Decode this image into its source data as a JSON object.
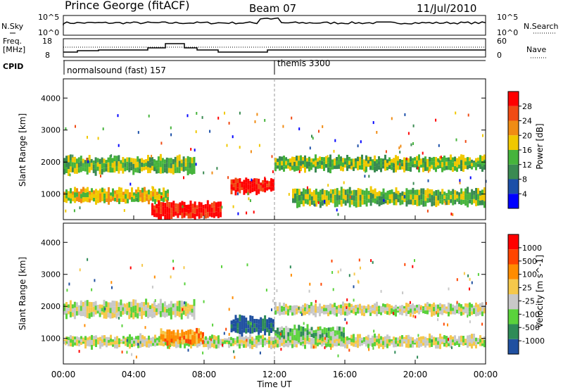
{
  "header": {
    "station": "Prince George (fitACF)",
    "beam": "Beam 07",
    "date": "11/Jul/2010"
  },
  "noise_panel": {
    "left_label": "N.Sky",
    "right_label": "N.Search",
    "left_ticks": [
      "10^5",
      "10^0"
    ],
    "right_ticks": [
      "10^5",
      "10^0"
    ]
  },
  "freq_panel": {
    "left_label_1": "Freq.",
    "left_label_2": "[MHz]",
    "right_label": "Nave",
    "left_ticks": [
      "18",
      "8"
    ],
    "right_ticks": [
      "60",
      "0"
    ]
  },
  "cpid": {
    "label": "CPID",
    "programs": [
      {
        "name": "normalsound (fast) 157",
        "start_hour": 0
      },
      {
        "name": "themis 3300",
        "start_hour": 12
      }
    ]
  },
  "time_axis": {
    "label": "Time UT",
    "ticks": [
      "00:00",
      "04:00",
      "08:00",
      "12:00",
      "16:00",
      "20:00",
      "00:00"
    ]
  },
  "chart_data": [
    {
      "type": "heatmap",
      "name": "power",
      "ylabel": "Slant Range [km]",
      "yticks": [
        "1000",
        "2000",
        "3000",
        "4000"
      ],
      "ylim": [
        200,
        4600
      ],
      "xlim": [
        0,
        24
      ],
      "colorbar_label": "Power [dB]",
      "colorbar_ticks": [
        "4",
        "8",
        "12",
        "16",
        "20",
        "24",
        "28"
      ],
      "colors": [
        "#0000ff",
        "#1c4fa8",
        "#3a8a52",
        "#46b43c",
        "#f0c800",
        "#f08c14",
        "#f04b14",
        "#ff0000"
      ],
      "echo_bands": [
        {
          "t0": 0,
          "t1": 7.5,
          "r0": 1600,
          "r1": 2200,
          "level": 3
        },
        {
          "t0": 0,
          "t1": 6,
          "r0": 700,
          "r1": 1200,
          "level": 4
        },
        {
          "t0": 5,
          "t1": 9,
          "r0": 200,
          "r1": 800,
          "level": 7
        },
        {
          "t0": 9.5,
          "t1": 12,
          "r0": 1000,
          "r1": 1500,
          "level": 7
        },
        {
          "t0": 12,
          "t1": 24,
          "r0": 1700,
          "r1": 2200,
          "level": 3
        },
        {
          "t0": 13,
          "t1": 24,
          "r0": 600,
          "r1": 1200,
          "level": 3
        }
      ]
    },
    {
      "type": "heatmap",
      "name": "velocity",
      "ylabel": "Slant Range [km]",
      "yticks": [
        "1000",
        "2000",
        "3000",
        "4000"
      ],
      "ylim": [
        200,
        4600
      ],
      "xlim": [
        0,
        24
      ],
      "colorbar_label": "Velocity [m s^-1]",
      "colorbar_ticks": [
        "1000",
        "500",
        "100",
        "25",
        "-25",
        "-100",
        "-500",
        "-1000"
      ],
      "colors": [
        "#ff0000",
        "#ff4500",
        "#ff8c00",
        "#f5c84b",
        "#c8c8c8",
        "#5ad23c",
        "#2e8b57",
        "#2050a0"
      ],
      "echo_bands": [
        {
          "t0": 0,
          "t1": 7.5,
          "r0": 1600,
          "r1": 2200,
          "level": 4
        },
        {
          "t0": 0,
          "t1": 24,
          "r0": 700,
          "r1": 1100,
          "level": 4
        },
        {
          "t0": 5.5,
          "t1": 8,
          "r0": 800,
          "r1": 1300,
          "level": 2
        },
        {
          "t0": 9.5,
          "t1": 12,
          "r0": 1100,
          "r1": 1700,
          "level": 7
        },
        {
          "t0": 12,
          "t1": 16,
          "r0": 900,
          "r1": 1400,
          "level": 5
        },
        {
          "t0": 12,
          "t1": 24,
          "r0": 1700,
          "r1": 2100,
          "level": 4
        }
      ]
    }
  ]
}
